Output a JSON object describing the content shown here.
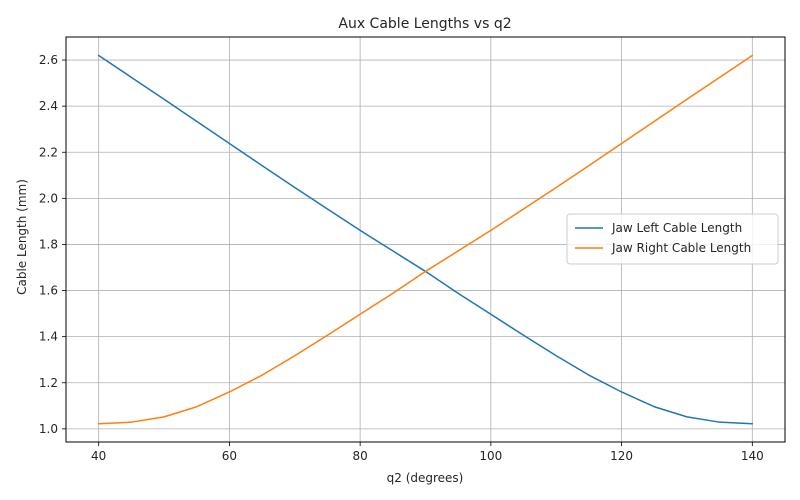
{
  "chart_data": {
    "type": "line",
    "title": "Aux Cable Lengths vs q2",
    "xlabel": "q2 (degrees)",
    "ylabel": "Cable Length (mm)",
    "xlim": [
      35,
      145
    ],
    "ylim": [
      0.943,
      2.7
    ],
    "xticks": [
      40,
      60,
      80,
      100,
      120,
      140
    ],
    "yticks": [
      1.0,
      1.2,
      1.4,
      1.6,
      1.8,
      2.0,
      2.2,
      2.4,
      2.6
    ],
    "xtick_labels": [
      "40",
      "60",
      "80",
      "100",
      "120",
      "140"
    ],
    "ytick_labels": [
      "1.0",
      "1.2",
      "1.4",
      "1.6",
      "1.8",
      "2.0",
      "2.2",
      "2.4",
      "2.6"
    ],
    "grid": true,
    "legend_position": "center-right",
    "x": [
      40,
      45,
      50,
      55,
      60,
      65,
      70,
      75,
      80,
      85,
      90,
      95,
      100,
      105,
      110,
      115,
      120,
      125,
      130,
      135,
      140
    ],
    "series": [
      {
        "name": "Jaw Left Cable Length",
        "color": "#1f77b4",
        "values": [
          2.62,
          2.525,
          2.43,
          2.334,
          2.238,
          2.142,
          2.047,
          1.954,
          1.861,
          1.772,
          1.683,
          1.588,
          1.497,
          1.406,
          1.317,
          1.233,
          1.16,
          1.096,
          1.052,
          1.029,
          1.022
        ]
      },
      {
        "name": "Jaw Right Cable Length",
        "color": "#ff7f0e",
        "values": [
          1.022,
          1.029,
          1.052,
          1.096,
          1.16,
          1.233,
          1.317,
          1.406,
          1.497,
          1.588,
          1.683,
          1.772,
          1.861,
          1.954,
          2.047,
          2.142,
          2.238,
          2.334,
          2.43,
          2.525,
          2.62
        ]
      }
    ]
  }
}
